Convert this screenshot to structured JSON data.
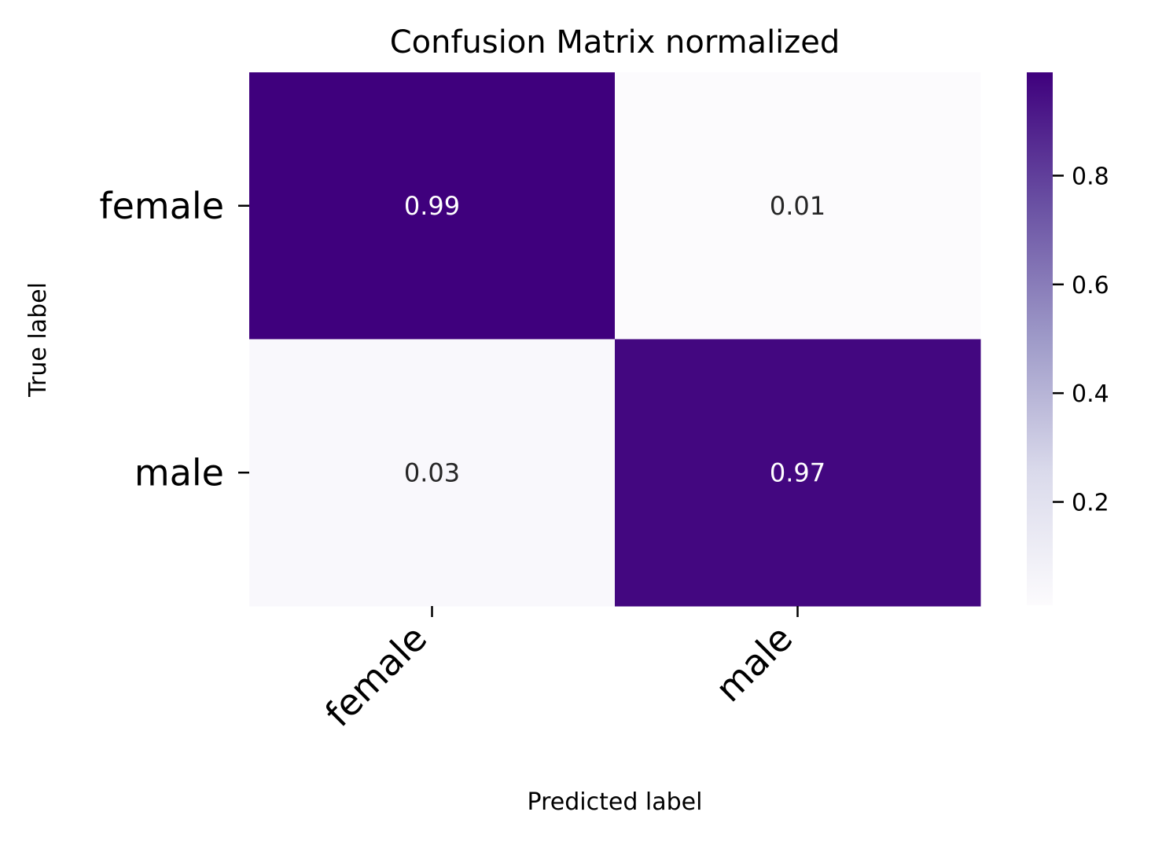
{
  "chart_data": {
    "type": "heatmap",
    "title": "Confusion Matrix normalized",
    "xlabel": "Predicted label",
    "ylabel": "True label",
    "x_categories": [
      "female",
      "male"
    ],
    "y_categories": [
      "female",
      "male"
    ],
    "values": [
      [
        0.99,
        0.01
      ],
      [
        0.03,
        0.97
      ]
    ],
    "cell_labels": [
      [
        "0.99",
        "0.01"
      ],
      [
        "0.03",
        "0.97"
      ]
    ],
    "colormap": "Purples",
    "colorbar": {
      "vmin": 0.01,
      "vmax": 0.99,
      "ticks": [
        0.2,
        0.4,
        0.6,
        0.8
      ],
      "tick_labels": [
        "0.2",
        "0.4",
        "0.6",
        "0.8"
      ]
    },
    "x_tick_rotation": "45 degrees, right-aligned",
    "grid": false,
    "legend": "colorbar on right"
  }
}
